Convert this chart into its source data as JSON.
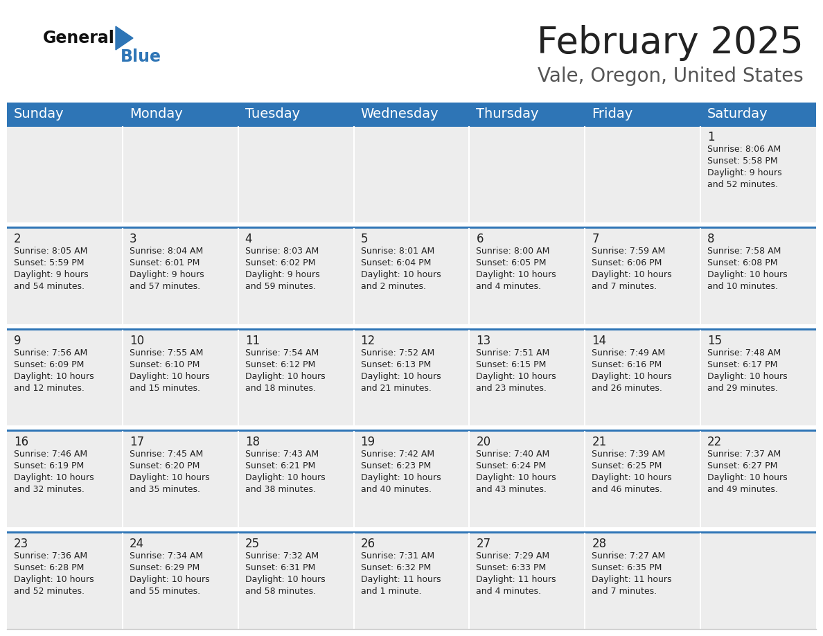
{
  "title": "February 2025",
  "subtitle": "Vale, Oregon, United States",
  "header_color": "#2E75B6",
  "header_text_color": "#FFFFFF",
  "background_color": "#FFFFFF",
  "cell_bg_color": "#EDEDED",
  "separator_color": "#2E75B6",
  "grid_line_color": "#FFFFFF",
  "text_color": "#222222",
  "day_names": [
    "Sunday",
    "Monday",
    "Tuesday",
    "Wednesday",
    "Thursday",
    "Friday",
    "Saturday"
  ],
  "title_fontsize": 38,
  "subtitle_fontsize": 20,
  "header_fontsize": 14,
  "cell_day_fontsize": 12,
  "cell_text_fontsize": 9,
  "days": [
    {
      "day": 1,
      "col": 6,
      "row": 0,
      "sunrise": "8:06 AM",
      "sunset": "5:58 PM",
      "daylight_h": "9",
      "daylight_m": "52"
    },
    {
      "day": 2,
      "col": 0,
      "row": 1,
      "sunrise": "8:05 AM",
      "sunset": "5:59 PM",
      "daylight_h": "9",
      "daylight_m": "54"
    },
    {
      "day": 3,
      "col": 1,
      "row": 1,
      "sunrise": "8:04 AM",
      "sunset": "6:01 PM",
      "daylight_h": "9",
      "daylight_m": "57"
    },
    {
      "day": 4,
      "col": 2,
      "row": 1,
      "sunrise": "8:03 AM",
      "sunset": "6:02 PM",
      "daylight_h": "9",
      "daylight_m": "59"
    },
    {
      "day": 5,
      "col": 3,
      "row": 1,
      "sunrise": "8:01 AM",
      "sunset": "6:04 PM",
      "daylight_h": "10",
      "daylight_m": "2"
    },
    {
      "day": 6,
      "col": 4,
      "row": 1,
      "sunrise": "8:00 AM",
      "sunset": "6:05 PM",
      "daylight_h": "10",
      "daylight_m": "4"
    },
    {
      "day": 7,
      "col": 5,
      "row": 1,
      "sunrise": "7:59 AM",
      "sunset": "6:06 PM",
      "daylight_h": "10",
      "daylight_m": "7"
    },
    {
      "day": 8,
      "col": 6,
      "row": 1,
      "sunrise": "7:58 AM",
      "sunset": "6:08 PM",
      "daylight_h": "10",
      "daylight_m": "10"
    },
    {
      "day": 9,
      "col": 0,
      "row": 2,
      "sunrise": "7:56 AM",
      "sunset": "6:09 PM",
      "daylight_h": "10",
      "daylight_m": "12"
    },
    {
      "day": 10,
      "col": 1,
      "row": 2,
      "sunrise": "7:55 AM",
      "sunset": "6:10 PM",
      "daylight_h": "10",
      "daylight_m": "15"
    },
    {
      "day": 11,
      "col": 2,
      "row": 2,
      "sunrise": "7:54 AM",
      "sunset": "6:12 PM",
      "daylight_h": "10",
      "daylight_m": "18"
    },
    {
      "day": 12,
      "col": 3,
      "row": 2,
      "sunrise": "7:52 AM",
      "sunset": "6:13 PM",
      "daylight_h": "10",
      "daylight_m": "21"
    },
    {
      "day": 13,
      "col": 4,
      "row": 2,
      "sunrise": "7:51 AM",
      "sunset": "6:15 PM",
      "daylight_h": "10",
      "daylight_m": "23"
    },
    {
      "day": 14,
      "col": 5,
      "row": 2,
      "sunrise": "7:49 AM",
      "sunset": "6:16 PM",
      "daylight_h": "10",
      "daylight_m": "26"
    },
    {
      "day": 15,
      "col": 6,
      "row": 2,
      "sunrise": "7:48 AM",
      "sunset": "6:17 PM",
      "daylight_h": "10",
      "daylight_m": "29"
    },
    {
      "day": 16,
      "col": 0,
      "row": 3,
      "sunrise": "7:46 AM",
      "sunset": "6:19 PM",
      "daylight_h": "10",
      "daylight_m": "32"
    },
    {
      "day": 17,
      "col": 1,
      "row": 3,
      "sunrise": "7:45 AM",
      "sunset": "6:20 PM",
      "daylight_h": "10",
      "daylight_m": "35"
    },
    {
      "day": 18,
      "col": 2,
      "row": 3,
      "sunrise": "7:43 AM",
      "sunset": "6:21 PM",
      "daylight_h": "10",
      "daylight_m": "38"
    },
    {
      "day": 19,
      "col": 3,
      "row": 3,
      "sunrise": "7:42 AM",
      "sunset": "6:23 PM",
      "daylight_h": "10",
      "daylight_m": "40"
    },
    {
      "day": 20,
      "col": 4,
      "row": 3,
      "sunrise": "7:40 AM",
      "sunset": "6:24 PM",
      "daylight_h": "10",
      "daylight_m": "43"
    },
    {
      "day": 21,
      "col": 5,
      "row": 3,
      "sunrise": "7:39 AM",
      "sunset": "6:25 PM",
      "daylight_h": "10",
      "daylight_m": "46"
    },
    {
      "day": 22,
      "col": 6,
      "row": 3,
      "sunrise": "7:37 AM",
      "sunset": "6:27 PM",
      "daylight_h": "10",
      "daylight_m": "49"
    },
    {
      "day": 23,
      "col": 0,
      "row": 4,
      "sunrise": "7:36 AM",
      "sunset": "6:28 PM",
      "daylight_h": "10",
      "daylight_m": "52"
    },
    {
      "day": 24,
      "col": 1,
      "row": 4,
      "sunrise": "7:34 AM",
      "sunset": "6:29 PM",
      "daylight_h": "10",
      "daylight_m": "55"
    },
    {
      "day": 25,
      "col": 2,
      "row": 4,
      "sunrise": "7:32 AM",
      "sunset": "6:31 PM",
      "daylight_h": "10",
      "daylight_m": "58"
    },
    {
      "day": 26,
      "col": 3,
      "row": 4,
      "sunrise": "7:31 AM",
      "sunset": "6:32 PM",
      "daylight_h": "11",
      "daylight_m": "1",
      "daylight_m_label": "1 minute"
    },
    {
      "day": 27,
      "col": 4,
      "row": 4,
      "sunrise": "7:29 AM",
      "sunset": "6:33 PM",
      "daylight_h": "11",
      "daylight_m": "4"
    },
    {
      "day": 28,
      "col": 5,
      "row": 4,
      "sunrise": "7:27 AM",
      "sunset": "6:35 PM",
      "daylight_h": "11",
      "daylight_m": "7"
    }
  ],
  "logo_general_color": "#111111",
  "logo_blue_color": "#2E75B6",
  "logo_triangle_color": "#2E75B6"
}
